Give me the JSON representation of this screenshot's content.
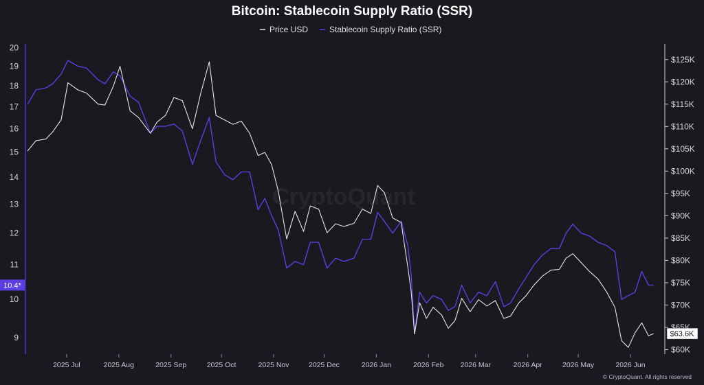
{
  "chart_data": {
    "type": "line",
    "title": "Bitcoin: Stablecoin Supply Ratio (SSR)",
    "legend_position": "top-center",
    "grid": false,
    "series": [
      {
        "name": "Price USD",
        "color": "#e6e6e6",
        "axis": "right"
      },
      {
        "name": "Stablecoin Supply Ratio (SSR)",
        "color": "#5b3fe0",
        "axis": "left"
      }
    ],
    "left_axis": {
      "range": [
        8.6,
        20.2
      ],
      "ticks": [
        "20",
        "19",
        "18",
        "17",
        "16",
        "15",
        "14",
        "13",
        "12",
        "11",
        "10",
        "9"
      ],
      "tick_values": [
        20,
        19,
        18,
        17,
        16,
        15,
        14,
        13,
        12,
        11,
        10,
        9
      ],
      "current_label": "10.4*",
      "current_value": 10.4
    },
    "right_axis": {
      "range": [
        59000,
        128500
      ],
      "ticks": [
        "$125K",
        "$120K",
        "$115K",
        "$110K",
        "$105K",
        "$100K",
        "$95K",
        "$90K",
        "$85K",
        "$80K",
        "$75K",
        "$70K",
        "$65K",
        "$60K"
      ],
      "tick_values": [
        125000,
        120000,
        115000,
        110000,
        105000,
        100000,
        95000,
        90000,
        85000,
        80000,
        75000,
        70000,
        65000,
        60000
      ],
      "current_label": "$63.6K",
      "current_value": 63600
    },
    "x_ticks": [
      "2025 Jul",
      "2025 Aug",
      "2025 Sep",
      "2025 Oct",
      "2025 Nov",
      "2025 Dec",
      "2026 Jan",
      "2026 Feb",
      "2026 Mar",
      "2026 Apr",
      "2026 May",
      "2026 Jun"
    ],
    "x_range": [
      "2025-06-20",
      "2026-06-30"
    ],
    "price_points": [
      [
        "2025-06-20",
        104500
      ],
      [
        "2025-06-25",
        106800
      ],
      [
        "2025-07-01",
        107200
      ],
      [
        "2025-07-05",
        108800
      ],
      [
        "2025-07-10",
        111500
      ],
      [
        "2025-07-14",
        119800
      ],
      [
        "2025-07-20",
        118200
      ],
      [
        "2025-07-25",
        117500
      ],
      [
        "2025-08-01",
        115000
      ],
      [
        "2025-08-05",
        114800
      ],
      [
        "2025-08-10",
        119000
      ],
      [
        "2025-08-14",
        123500
      ],
      [
        "2025-08-20",
        113500
      ],
      [
        "2025-08-25",
        112000
      ],
      [
        "2025-09-01",
        108500
      ],
      [
        "2025-09-05",
        111000
      ],
      [
        "2025-09-10",
        112500
      ],
      [
        "2025-09-15",
        116500
      ],
      [
        "2025-09-20",
        115800
      ],
      [
        "2025-09-26",
        109500
      ],
      [
        "2025-10-01",
        117500
      ],
      [
        "2025-10-06",
        124500
      ],
      [
        "2025-10-10",
        112500
      ],
      [
        "2025-10-15",
        111500
      ],
      [
        "2025-10-20",
        110500
      ],
      [
        "2025-10-25",
        111200
      ],
      [
        "2025-10-30",
        108500
      ],
      [
        "2025-11-04",
        103500
      ],
      [
        "2025-11-08",
        104200
      ],
      [
        "2025-11-12",
        101500
      ],
      [
        "2025-11-16",
        95500
      ],
      [
        "2025-11-21",
        84800
      ],
      [
        "2025-11-26",
        91000
      ],
      [
        "2025-12-01",
        86500
      ],
      [
        "2025-12-05",
        92200
      ],
      [
        "2025-12-10",
        91500
      ],
      [
        "2025-12-15",
        86200
      ],
      [
        "2025-12-20",
        88200
      ],
      [
        "2025-12-25",
        87600
      ],
      [
        "2025-12-31",
        88300
      ],
      [
        "2026-01-05",
        91500
      ],
      [
        "2026-01-10",
        90500
      ],
      [
        "2026-01-14",
        96800
      ],
      [
        "2026-01-18",
        95200
      ],
      [
        "2026-01-23",
        89500
      ],
      [
        "2026-01-28",
        88500
      ],
      [
        "2026-02-01",
        78500
      ],
      [
        "2026-02-03",
        73000
      ],
      [
        "2026-02-05",
        63500
      ],
      [
        "2026-02-08",
        70500
      ],
      [
        "2026-02-12",
        67000
      ],
      [
        "2026-02-16",
        69500
      ],
      [
        "2026-02-21",
        67800
      ],
      [
        "2026-02-25",
        64800
      ],
      [
        "2026-03-01",
        66500
      ],
      [
        "2026-03-05",
        71500
      ],
      [
        "2026-03-10",
        68500
      ],
      [
        "2026-03-15",
        71200
      ],
      [
        "2026-03-20",
        69800
      ],
      [
        "2026-03-25",
        71000
      ],
      [
        "2026-03-30",
        67000
      ],
      [
        "2026-04-03",
        67500
      ],
      [
        "2026-04-08",
        70500
      ],
      [
        "2026-04-12",
        72000
      ],
      [
        "2026-04-17",
        74500
      ],
      [
        "2026-04-22",
        76500
      ],
      [
        "2026-04-27",
        77800
      ],
      [
        "2026-05-02",
        78000
      ],
      [
        "2026-05-06",
        80500
      ],
      [
        "2026-05-10",
        81500
      ],
      [
        "2026-05-15",
        79500
      ],
      [
        "2026-05-20",
        77500
      ],
      [
        "2026-05-25",
        75800
      ],
      [
        "2026-05-30",
        73000
      ],
      [
        "2026-06-04",
        69500
      ],
      [
        "2026-06-08",
        62000
      ],
      [
        "2026-06-12",
        60500
      ],
      [
        "2026-06-16",
        63800
      ],
      [
        "2026-06-20",
        66000
      ],
      [
        "2026-06-24",
        63100
      ],
      [
        "2026-06-27",
        63600
      ]
    ],
    "ssr_points": [
      [
        "2025-06-20",
        17.1
      ],
      [
        "2025-06-25",
        17.8
      ],
      [
        "2025-07-01",
        17.9
      ],
      [
        "2025-07-05",
        18.1
      ],
      [
        "2025-07-10",
        18.6
      ],
      [
        "2025-07-14",
        19.3
      ],
      [
        "2025-07-20",
        19.0
      ],
      [
        "2025-07-25",
        18.9
      ],
      [
        "2025-08-01",
        18.3
      ],
      [
        "2025-08-05",
        18.1
      ],
      [
        "2025-08-10",
        18.7
      ],
      [
        "2025-08-14",
        18.5
      ],
      [
        "2025-08-20",
        17.5
      ],
      [
        "2025-08-25",
        17.2
      ],
      [
        "2025-09-01",
        15.8
      ],
      [
        "2025-09-05",
        16.1
      ],
      [
        "2025-09-10",
        16.1
      ],
      [
        "2025-09-15",
        16.2
      ],
      [
        "2025-09-20",
        15.9
      ],
      [
        "2025-09-26",
        14.5
      ],
      [
        "2025-10-01",
        15.5
      ],
      [
        "2025-10-06",
        16.5
      ],
      [
        "2025-10-10",
        14.6
      ],
      [
        "2025-10-15",
        14.1
      ],
      [
        "2025-10-20",
        13.9
      ],
      [
        "2025-10-25",
        14.2
      ],
      [
        "2025-10-30",
        14.2
      ],
      [
        "2025-11-04",
        12.8
      ],
      [
        "2025-11-08",
        13.2
      ],
      [
        "2025-11-12",
        12.6
      ],
      [
        "2025-11-16",
        12.1
      ],
      [
        "2025-11-21",
        10.9
      ],
      [
        "2025-11-26",
        11.1
      ],
      [
        "2025-12-01",
        11.0
      ],
      [
        "2025-12-05",
        11.7
      ],
      [
        "2025-12-10",
        11.7
      ],
      [
        "2025-12-15",
        10.9
      ],
      [
        "2025-12-20",
        11.2
      ],
      [
        "2025-12-25",
        11.1
      ],
      [
        "2025-12-31",
        11.2
      ],
      [
        "2026-01-05",
        11.8
      ],
      [
        "2026-01-10",
        11.8
      ],
      [
        "2026-01-14",
        12.7
      ],
      [
        "2026-01-18",
        12.4
      ],
      [
        "2026-01-23",
        12.0
      ],
      [
        "2026-01-28",
        12.4
      ],
      [
        "2026-02-01",
        11.6
      ],
      [
        "2026-02-03",
        10.7
      ],
      [
        "2026-02-05",
        9.1
      ],
      [
        "2026-02-08",
        10.2
      ],
      [
        "2026-02-12",
        9.9
      ],
      [
        "2026-02-16",
        10.1
      ],
      [
        "2026-02-21",
        10.0
      ],
      [
        "2026-02-25",
        9.7
      ],
      [
        "2026-03-01",
        9.8
      ],
      [
        "2026-03-05",
        10.4
      ],
      [
        "2026-03-10",
        9.9
      ],
      [
        "2026-03-15",
        10.2
      ],
      [
        "2026-03-20",
        10.1
      ],
      [
        "2026-03-25",
        10.5
      ],
      [
        "2026-03-30",
        9.8
      ],
      [
        "2026-04-03",
        9.9
      ],
      [
        "2026-04-08",
        10.3
      ],
      [
        "2026-04-12",
        10.6
      ],
      [
        "2026-04-17",
        11.0
      ],
      [
        "2026-04-22",
        11.3
      ],
      [
        "2026-04-27",
        11.5
      ],
      [
        "2026-05-02",
        11.5
      ],
      [
        "2026-05-06",
        12.0
      ],
      [
        "2026-05-10",
        12.3
      ],
      [
        "2026-05-15",
        12.0
      ],
      [
        "2026-05-20",
        11.9
      ],
      [
        "2026-05-25",
        11.7
      ],
      [
        "2026-05-30",
        11.6
      ],
      [
        "2026-06-04",
        11.4
      ],
      [
        "2026-06-08",
        10.0
      ],
      [
        "2026-06-12",
        10.1
      ],
      [
        "2026-06-16",
        10.2
      ],
      [
        "2026-06-20",
        10.8
      ],
      [
        "2026-06-24",
        10.4
      ],
      [
        "2026-06-27",
        10.4
      ]
    ]
  },
  "watermark": "CryptoQuant",
  "copyright": "© CryptoQuant. All rights reserved"
}
